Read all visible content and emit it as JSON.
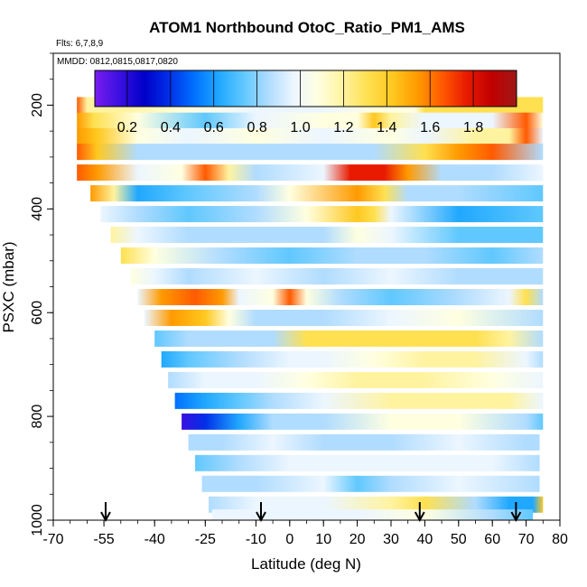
{
  "chart_data": {
    "type": "heatmap",
    "title": "ATOM1 Northbound OtoC_Ratio_PM1_AMS",
    "flights_note": "Flts: 6,7,8,9",
    "dates_note": "MMDD: 0812,0815,0817,0820",
    "xlabel": "Latitude (deg N)",
    "ylabel": "PSXC (mbar)",
    "x_ticks": [
      "-70",
      "-55",
      "-40",
      "-25",
      "-10",
      "0",
      "10",
      "20",
      "30",
      "40",
      "50",
      "60",
      "70",
      "80"
    ],
    "x_tick_values": [
      -70,
      -55,
      -40,
      -25,
      -10,
      0,
      10,
      20,
      30,
      40,
      50,
      60,
      70,
      80
    ],
    "y_ticks": [
      "200",
      "400",
      "600",
      "800",
      "1000"
    ],
    "y_tick_values": [
      200,
      400,
      600,
      800,
      1000
    ],
    "xlim": [
      -70,
      80
    ],
    "ylim": [
      1000,
      100
    ],
    "colorbar": {
      "ticks": [
        "0.2",
        "0.4",
        "0.6",
        "0.8",
        "1.0",
        "1.2",
        "1.4",
        "1.6",
        "1.8"
      ],
      "range": [
        0.05,
        2.0
      ],
      "colors": [
        "#7a1cf0",
        "#3a10e0",
        "#0000c8",
        "#0030e8",
        "#0070ff",
        "#20a8ff",
        "#60c8ff",
        "#b0dcff",
        "#ecf6ff",
        "#ffffe0",
        "#fff3a0",
        "#ffe050",
        "#ffc820",
        "#ff9a00",
        "#ff5a00",
        "#e81a00",
        "#c00000",
        "#a01818"
      ]
    },
    "arrows_lat": [
      -54.5,
      -8.5,
      38.5,
      67
    ],
    "profile_bands": [
      {
        "p": 200,
        "from": -63,
        "to": 75,
        "values": [
          [
            -63,
            1.6
          ],
          [
            -60,
            1.25
          ],
          [
            -50,
            1.15
          ],
          [
            -30,
            1.05
          ],
          [
            -10,
            1.0
          ],
          [
            10,
            1.02
          ],
          [
            25,
            1.05
          ],
          [
            37,
            1.1
          ],
          [
            40,
            1.3
          ],
          [
            50,
            1.35
          ],
          [
            75,
            1.35
          ]
        ]
      },
      {
        "p": 230,
        "from": -63,
        "to": 75,
        "values": [
          [
            -63,
            1.5
          ],
          [
            -58,
            1.3
          ],
          [
            -45,
            1.1
          ],
          [
            -25,
            0.75
          ],
          [
            -10,
            0.95
          ],
          [
            10,
            1.05
          ],
          [
            20,
            1.1
          ],
          [
            25,
            1.4
          ],
          [
            30,
            1.2
          ],
          [
            40,
            1.0
          ],
          [
            60,
            1.0
          ],
          [
            70,
            1.7
          ],
          [
            75,
            1.1
          ]
        ]
      },
      {
        "p": 260,
        "from": -63,
        "to": 75,
        "values": [
          [
            -63,
            1.55
          ],
          [
            -57,
            1.4
          ],
          [
            -45,
            1.1
          ],
          [
            -30,
            1.0
          ],
          [
            -10,
            1.05
          ],
          [
            10,
            1.0
          ],
          [
            30,
            1.05
          ],
          [
            40,
            1.0
          ],
          [
            55,
            1.15
          ],
          [
            65,
            1.2
          ],
          [
            70,
            1.6
          ],
          [
            75,
            1.0
          ]
        ]
      },
      {
        "p": 290,
        "from": -63,
        "to": 75,
        "values": [
          [
            -63,
            1.6
          ],
          [
            -57,
            1.45
          ],
          [
            -45,
            0.8
          ],
          [
            -30,
            0.9
          ],
          [
            -10,
            0.85
          ],
          [
            10,
            0.8
          ],
          [
            25,
            0.85
          ],
          [
            40,
            1.3
          ],
          [
            50,
            1.5
          ],
          [
            60,
            1.6
          ],
          [
            75,
            0.8
          ]
        ]
      },
      {
        "p": 330,
        "from": -63,
        "to": 75,
        "values": [
          [
            -63,
            1.65
          ],
          [
            -57,
            1.5
          ],
          [
            -45,
            1.0
          ],
          [
            -32,
            1.1
          ],
          [
            -25,
            1.6
          ],
          [
            -18,
            1.2
          ],
          [
            -10,
            0.8
          ],
          [
            10,
            1.0
          ],
          [
            18,
            1.75
          ],
          [
            28,
            1.8
          ],
          [
            35,
            1.5
          ],
          [
            45,
            0.8
          ],
          [
            60,
            0.9
          ],
          [
            75,
            1.0
          ]
        ]
      },
      {
        "p": 370,
        "from": -59,
        "to": 75,
        "values": [
          [
            -59,
            1.55
          ],
          [
            -52,
            1.2
          ],
          [
            -45,
            0.6
          ],
          [
            -30,
            0.7
          ],
          [
            -10,
            0.9
          ],
          [
            0,
            1.1
          ],
          [
            20,
            1.5
          ],
          [
            28,
            1.3
          ],
          [
            35,
            0.9
          ],
          [
            50,
            0.85
          ],
          [
            75,
            0.7
          ]
        ]
      },
      {
        "p": 410,
        "from": -56,
        "to": 75,
        "values": [
          [
            -56,
            1.0
          ],
          [
            -45,
            0.9
          ],
          [
            -30,
            0.75
          ],
          [
            -10,
            0.85
          ],
          [
            5,
            1.1
          ],
          [
            20,
            1.4
          ],
          [
            25,
            1.3
          ],
          [
            30,
            1.0
          ],
          [
            50,
            0.6
          ],
          [
            75,
            0.7
          ]
        ]
      },
      {
        "p": 450,
        "from": -53,
        "to": 75,
        "values": [
          [
            -53,
            1.2
          ],
          [
            -45,
            1.0
          ],
          [
            -30,
            0.9
          ],
          [
            -10,
            0.8
          ],
          [
            10,
            0.9
          ],
          [
            20,
            1.1
          ],
          [
            30,
            1.0
          ],
          [
            50,
            0.7
          ],
          [
            75,
            0.75
          ]
        ]
      },
      {
        "p": 490,
        "from": -50,
        "to": 75,
        "values": [
          [
            -50,
            1.3
          ],
          [
            -40,
            1.1
          ],
          [
            -20,
            0.85
          ],
          [
            0,
            0.7
          ],
          [
            20,
            0.8
          ],
          [
            40,
            0.8
          ],
          [
            60,
            0.7
          ],
          [
            75,
            0.8
          ]
        ]
      },
      {
        "p": 530,
        "from": -47,
        "to": 75,
        "values": [
          [
            -47,
            1.1
          ],
          [
            -40,
            1.0
          ],
          [
            -30,
            0.9
          ],
          [
            -10,
            1.0
          ],
          [
            10,
            0.9
          ],
          [
            30,
            0.95
          ],
          [
            50,
            0.85
          ],
          [
            75,
            0.9
          ]
        ]
      },
      {
        "p": 570,
        "from": -45,
        "to": 75,
        "values": [
          [
            -45,
            1.0
          ],
          [
            -38,
            1.5
          ],
          [
            -28,
            1.6
          ],
          [
            -20,
            1.5
          ],
          [
            -15,
            1.0
          ],
          [
            -5,
            1.05
          ],
          [
            0,
            1.6
          ],
          [
            5,
            1.1
          ],
          [
            15,
            0.8
          ],
          [
            30,
            0.75
          ],
          [
            50,
            0.8
          ],
          [
            65,
            1.0
          ],
          [
            70,
            1.3
          ],
          [
            75,
            0.9
          ]
        ]
      },
      {
        "p": 610,
        "from": -43,
        "to": 75,
        "values": [
          [
            -43,
            1.0
          ],
          [
            -35,
            1.5
          ],
          [
            -25,
            1.45
          ],
          [
            -18,
            1.1
          ],
          [
            -10,
            0.9
          ],
          [
            0,
            0.8
          ],
          [
            10,
            0.9
          ],
          [
            30,
            0.95
          ],
          [
            50,
            1.05
          ],
          [
            75,
            0.9
          ]
        ]
      },
      {
        "p": 650,
        "from": -40,
        "to": 75,
        "values": [
          [
            -40,
            0.75
          ],
          [
            -30,
            0.85
          ],
          [
            -15,
            0.9
          ],
          [
            -5,
            0.9
          ],
          [
            5,
            1.3
          ],
          [
            20,
            1.35
          ],
          [
            40,
            1.3
          ],
          [
            55,
            1.3
          ],
          [
            65,
            1.2
          ],
          [
            75,
            0.9
          ]
        ]
      },
      {
        "p": 690,
        "from": -38,
        "to": 75,
        "values": [
          [
            -38,
            0.6
          ],
          [
            -30,
            0.75
          ],
          [
            -15,
            0.85
          ],
          [
            0,
            0.95
          ],
          [
            10,
            1.0
          ],
          [
            25,
            1.1
          ],
          [
            40,
            1.2
          ],
          [
            55,
            1.2
          ],
          [
            70,
            0.95
          ],
          [
            75,
            0.9
          ]
        ]
      },
      {
        "p": 730,
        "from": -36,
        "to": 75,
        "values": [
          [
            -36,
            0.9
          ],
          [
            -25,
            1.0
          ],
          [
            -10,
            0.95
          ],
          [
            5,
            1.05
          ],
          [
            20,
            1.2
          ],
          [
            40,
            1.25
          ],
          [
            60,
            1.1
          ],
          [
            75,
            1.0
          ]
        ]
      },
      {
        "p": 770,
        "from": -34,
        "to": 75,
        "values": [
          [
            -34,
            0.5
          ],
          [
            -25,
            0.6
          ],
          [
            -15,
            0.7
          ],
          [
            -5,
            0.8
          ],
          [
            10,
            1.0
          ],
          [
            30,
            1.2
          ],
          [
            50,
            1.25
          ],
          [
            65,
            1.2
          ],
          [
            75,
            1.0
          ]
        ]
      },
      {
        "p": 810,
        "from": -32,
        "to": 75,
        "values": [
          [
            -32,
            0.2
          ],
          [
            -25,
            0.35
          ],
          [
            -15,
            0.6
          ],
          [
            -5,
            0.8
          ],
          [
            10,
            0.9
          ],
          [
            30,
            1.05
          ],
          [
            50,
            1.05
          ],
          [
            70,
            0.9
          ],
          [
            75,
            0.7
          ]
        ]
      },
      {
        "p": 850,
        "from": -30,
        "to": 74,
        "values": [
          [
            -30,
            0.8
          ],
          [
            -20,
            0.9
          ],
          [
            -5,
            0.95
          ],
          [
            10,
            0.9
          ],
          [
            30,
            0.9
          ],
          [
            50,
            0.95
          ],
          [
            70,
            0.9
          ],
          [
            74,
            0.85
          ]
        ]
      },
      {
        "p": 890,
        "from": -28,
        "to": 74,
        "values": [
          [
            -28,
            0.7
          ],
          [
            -15,
            0.85
          ],
          [
            0,
            0.95
          ],
          [
            20,
            0.95
          ],
          [
            40,
            0.95
          ],
          [
            60,
            0.95
          ],
          [
            74,
            0.9
          ]
        ]
      },
      {
        "p": 930,
        "from": -26,
        "to": 74,
        "values": [
          [
            -26,
            0.85
          ],
          [
            -10,
            0.9
          ],
          [
            10,
            0.95
          ],
          [
            20,
            0.7
          ],
          [
            30,
            0.9
          ],
          [
            50,
            0.95
          ],
          [
            74,
            0.9
          ]
        ]
      },
      {
        "p": 970,
        "from": -24,
        "to": 75,
        "values": [
          [
            -24,
            0.9
          ],
          [
            -10,
            0.95
          ],
          [
            10,
            1.0
          ],
          [
            30,
            1.2
          ],
          [
            40,
            1.3
          ],
          [
            55,
            0.85
          ],
          [
            65,
            0.65
          ],
          [
            72,
            0.6
          ],
          [
            75,
            1.4
          ]
        ]
      },
      {
        "p": 995,
        "from": -23,
        "to": 72,
        "values": [
          [
            -23,
            0.95
          ],
          [
            0,
            0.95
          ],
          [
            20,
            1.0
          ],
          [
            40,
            1.05
          ],
          [
            60,
            0.85
          ],
          [
            72,
            0.7
          ]
        ]
      }
    ]
  }
}
